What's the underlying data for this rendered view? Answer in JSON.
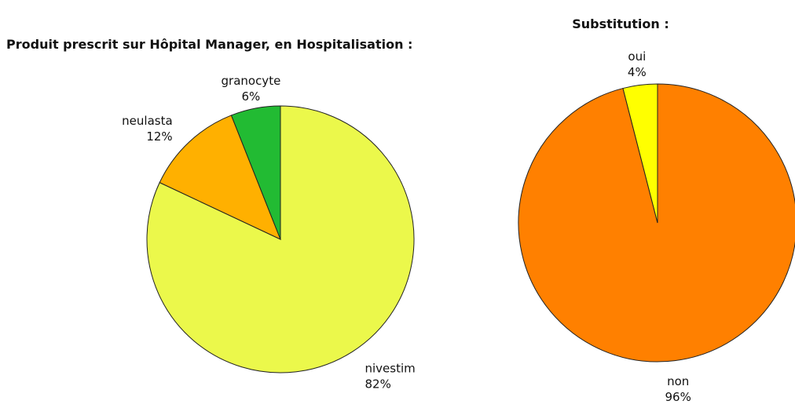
{
  "chart_data": [
    {
      "type": "pie",
      "title": "Produit prescrit sur Hôpital Manager, en Hospitalisation :",
      "categories": [
        "nivestim",
        "neulasta",
        "granocyte"
      ],
      "values": [
        82,
        12,
        6
      ],
      "value_labels": [
        "82%",
        "12%",
        "6%"
      ],
      "colors": [
        "#ebf84b",
        "#ffb000",
        "#22bb33"
      ]
    },
    {
      "type": "pie",
      "title": "Substitution :",
      "categories": [
        "non",
        "oui"
      ],
      "values": [
        96,
        4
      ],
      "value_labels": [
        "96%",
        "4%"
      ],
      "colors": [
        "#ff8000",
        "#ffff00"
      ]
    }
  ]
}
